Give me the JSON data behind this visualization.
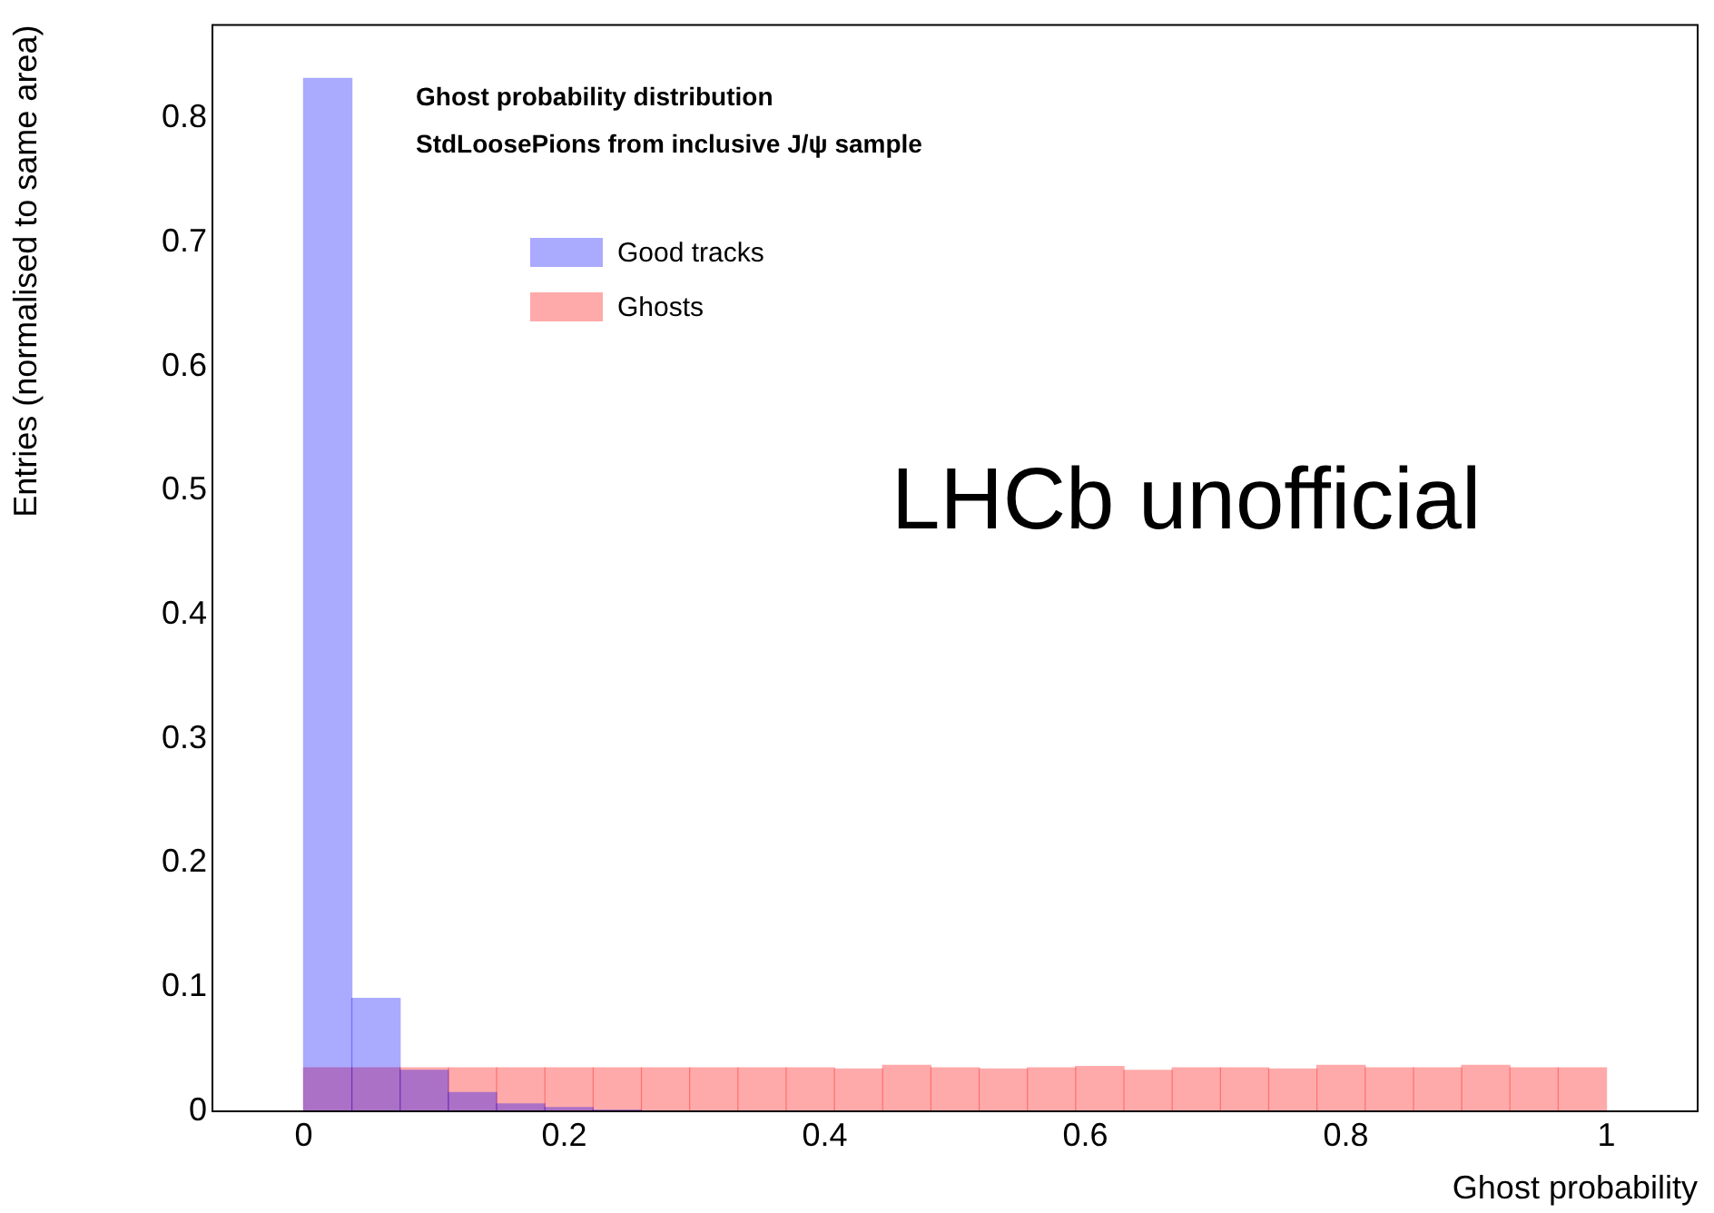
{
  "chart_data": {
    "type": "histogram",
    "title": "Ghost probability distribution",
    "subtitle": "StdLoosePions from inclusive J/ψ sample",
    "xlabel": "Ghost probability",
    "ylabel": "Entries (normalised to same area)",
    "annotations": [
      "LHCb unofficial"
    ],
    "bins": [
      0,
      0.037,
      0.0741,
      0.1111,
      0.1481,
      0.1852,
      0.2222,
      0.2593,
      0.2963,
      0.3333,
      0.3704,
      0.4074,
      0.4444,
      0.4815,
      0.5185,
      0.5556,
      0.5926,
      0.6296,
      0.6667,
      0.7037,
      0.7407,
      0.7778,
      0.8148,
      0.8519,
      0.8889,
      0.9259,
      0.963,
      1
    ],
    "series": [
      {
        "name": "Good tracks",
        "color": "#0000ff",
        "values": [
          0.832,
          0.091,
          0.033,
          0.015,
          0.006,
          0.003,
          0.001,
          0,
          0,
          0,
          0,
          0,
          0,
          0,
          0,
          0,
          0,
          0,
          0,
          0,
          0,
          0,
          0,
          0,
          0,
          0,
          0
        ]
      },
      {
        "name": "Ghosts",
        "color": "#ff0000",
        "values": [
          0.035,
          0.035,
          0.035,
          0.035,
          0.035,
          0.035,
          0.035,
          0.035,
          0.035,
          0.035,
          0.035,
          0.034,
          0.037,
          0.035,
          0.034,
          0.035,
          0.036,
          0.033,
          0.035,
          0.035,
          0.034,
          0.037,
          0.035,
          0.035,
          0.037,
          0.035,
          0.035
        ]
      }
    ],
    "legend": "top left",
    "xlim": [
      -0.07,
      1.07
    ],
    "ylim": [
      0,
      0.875
    ],
    "xticks": [
      0,
      0.2,
      0.4,
      0.6,
      0.8,
      1
    ],
    "yticks": [
      0,
      0.1,
      0.2,
      0.3,
      0.4,
      0.5,
      0.6,
      0.7,
      0.8
    ]
  }
}
